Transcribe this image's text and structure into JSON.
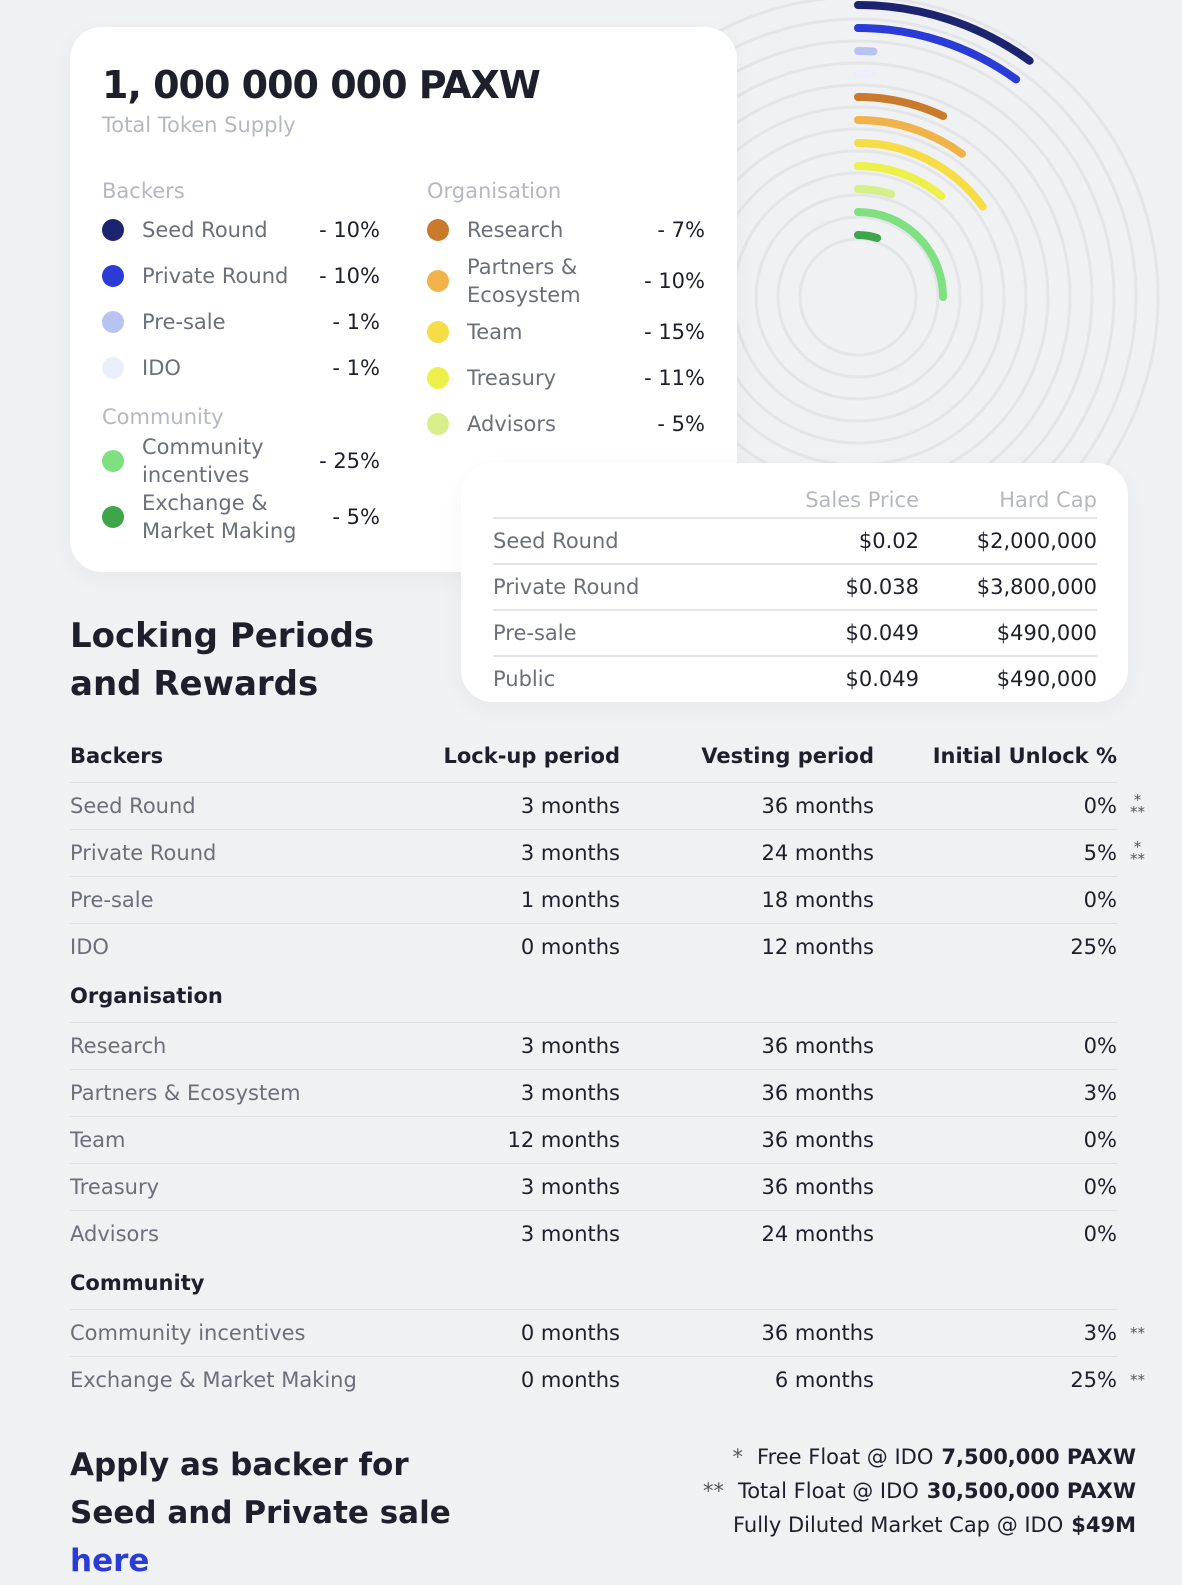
{
  "supply": {
    "amount": "1, 000 000 000 PAXW",
    "label": "Total Token Supply"
  },
  "allocation": [
    {
      "title": "Backers",
      "items": [
        {
          "name": "Seed Round",
          "color": "#1c2470",
          "value": 10,
          "label": "- 10%"
        },
        {
          "name": "Private Round",
          "color": "#2a3bd6",
          "value": 10,
          "label": "- 10%"
        },
        {
          "name": "Pre-sale",
          "color": "#b9c3f0",
          "value": 1,
          "label": "- 1%"
        },
        {
          "name": "IDO",
          "color": "#eceefa",
          "value": 1,
          "label": "- 1%"
        }
      ]
    },
    {
      "title": "Community",
      "items": [
        {
          "name": "Community incentives",
          "color": "#7ee081",
          "value": 25,
          "label": "- 25%"
        },
        {
          "name": "Exchange & Market Making",
          "color": "#3ea64a",
          "value": 5,
          "label": "- 5%"
        }
      ]
    },
    {
      "title": "Organisation",
      "items": [
        {
          "name": "Research",
          "color": "#c97a2a",
          "value": 7,
          "label": "- 7%"
        },
        {
          "name": "Partners & Ecosystem",
          "color": "#f2b24a",
          "value": 10,
          "label": "- 10%"
        },
        {
          "name": "Team",
          "color": "#f6dc45",
          "value": 15,
          "label": "- 15%"
        },
        {
          "name": "Treasury",
          "color": "#eef04a",
          "value": 11,
          "label": "- 11%"
        },
        {
          "name": "Advisors",
          "color": "#d6ef8a",
          "value": 5,
          "label": "- 5%"
        }
      ]
    }
  ],
  "sales": {
    "headers": [
      "Sales Price",
      "Hard Cap"
    ],
    "rows": [
      [
        "Seed Round",
        "$0.02",
        "$2,000,000"
      ],
      [
        "Private Round",
        "$0.038",
        "$3,800,000"
      ],
      [
        "Pre-sale",
        "$0.049",
        "$490,000"
      ],
      [
        "Public",
        "$0.049",
        "$490,000"
      ]
    ]
  },
  "locking": {
    "title": "Locking Periods and Rewards",
    "columns": [
      "Lock-up period",
      "Vesting period",
      "Initial Unlock %"
    ],
    "groups": [
      {
        "title": "Backers",
        "rows": [
          {
            "cells": [
              "Seed Round",
              "3 months",
              "36 months",
              "0%"
            ],
            "note": [
              "*",
              "**"
            ]
          },
          {
            "cells": [
              "Private Round",
              "3 months",
              "24 months",
              "5%"
            ],
            "note": [
              "*",
              "**"
            ]
          },
          {
            "cells": [
              "Pre-sale",
              "1 months",
              "18 months",
              "0%"
            ]
          },
          {
            "cells": [
              "IDO",
              "0 months",
              "12 months",
              "25%"
            ]
          }
        ]
      },
      {
        "title": "Organisation",
        "rows": [
          {
            "cells": [
              "Research",
              "3 months",
              "36 months",
              "0%"
            ]
          },
          {
            "cells": [
              "Partners & Ecosystem",
              "3 months",
              "36 months",
              "3%"
            ]
          },
          {
            "cells": [
              "Team",
              "12 months",
              "36 months",
              "0%"
            ]
          },
          {
            "cells": [
              "Treasury",
              "3 months",
              "36 months",
              "0%"
            ]
          },
          {
            "cells": [
              "Advisors",
              "3 months",
              "24 months",
              "0%"
            ]
          }
        ]
      },
      {
        "title": "Community",
        "rows": [
          {
            "cells": [
              "Community incentives",
              "0 months",
              "36 months",
              "3%"
            ],
            "note": [
              "**"
            ]
          },
          {
            "cells": [
              "Exchange & Market Making",
              "0 months",
              "6 months",
              "25%"
            ],
            "note": [
              "**"
            ]
          }
        ]
      }
    ]
  },
  "apply": {
    "text": "Apply as backer for Seed and Private sale",
    "link": "here"
  },
  "notes": [
    {
      "mark": "*",
      "text": "Free  Float @ IDO",
      "bold": "7,500,000 PAXW"
    },
    {
      "mark": "**",
      "text": "Total Float @ IDO",
      "bold": "30,500,000 PAXW"
    },
    {
      "text": "Fully Diluted Market Cap @ IDO",
      "bold": "$49M"
    }
  ]
}
